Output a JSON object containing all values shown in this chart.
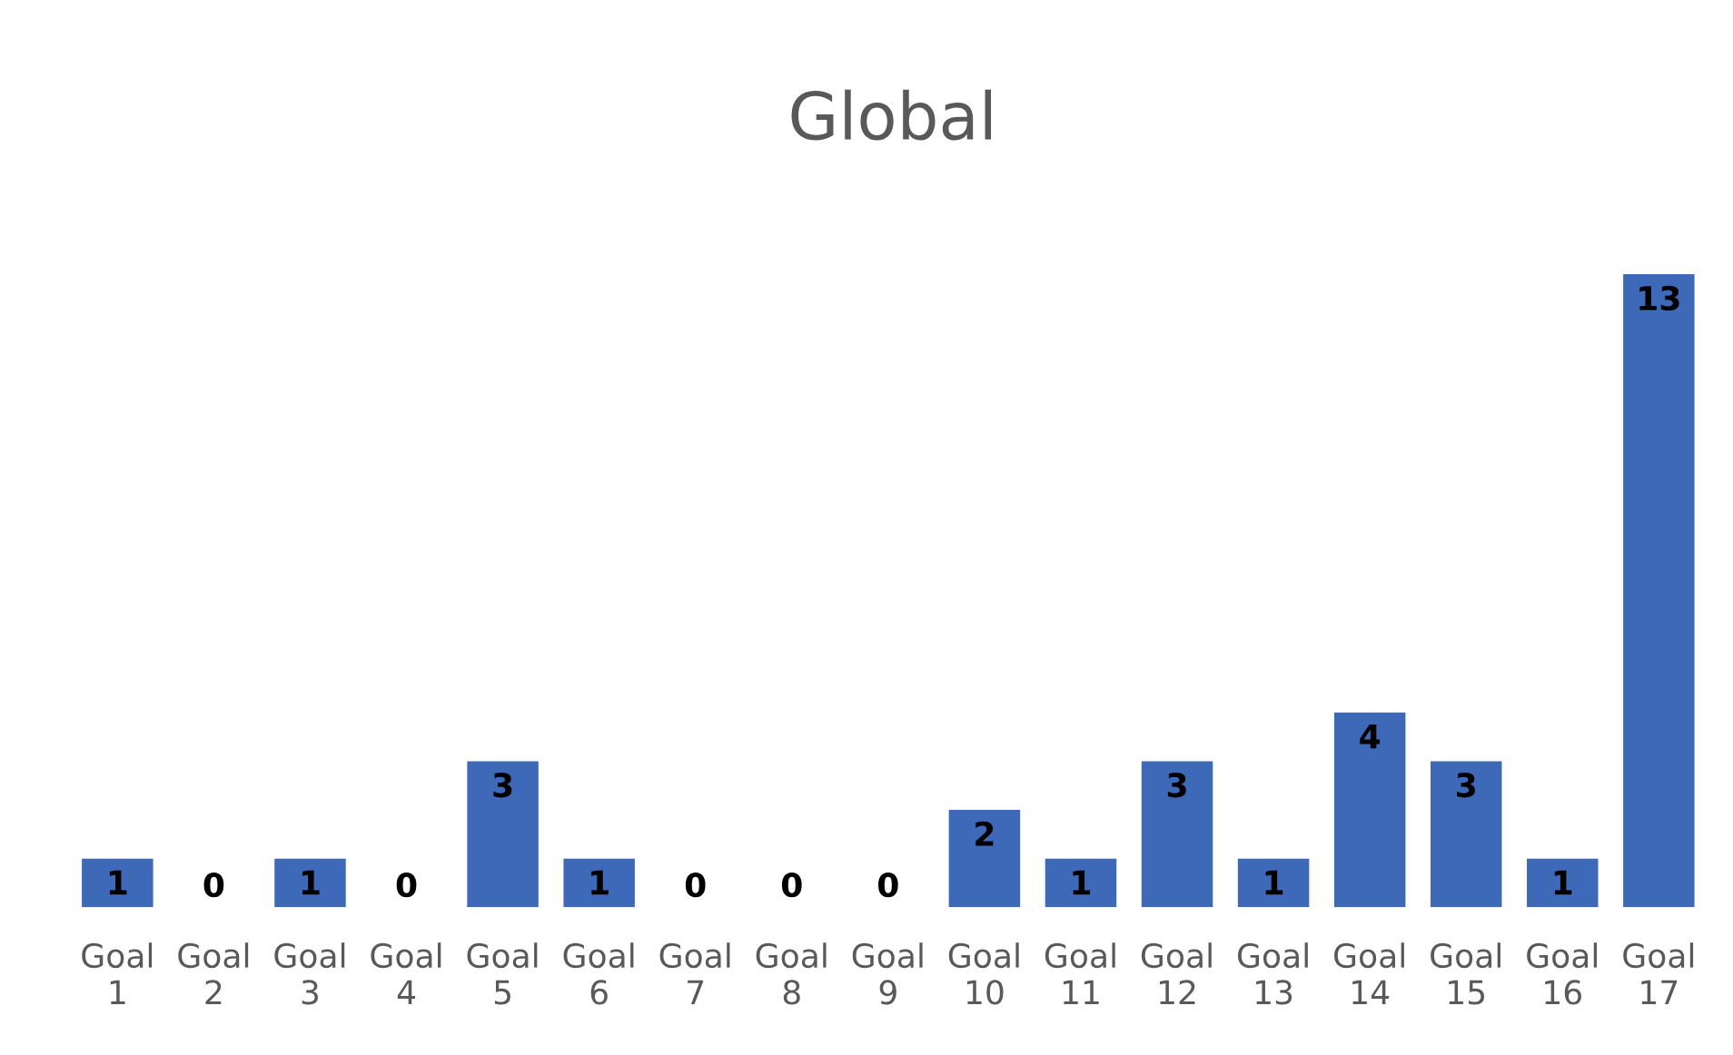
{
  "chart_data": {
    "type": "bar",
    "title": "Global",
    "categories": [
      "Goal 1",
      "Goal 2",
      "Goal 3",
      "Goal 4",
      "Goal 5",
      "Goal 6",
      "Goal 7",
      "Goal 8",
      "Goal 9",
      "Goal 10",
      "Goal 11",
      "Goal 12",
      "Goal 13",
      "Goal 14",
      "Goal 15",
      "Goal 16",
      "Goal 17"
    ],
    "values": [
      1,
      0,
      1,
      0,
      3,
      1,
      0,
      0,
      0,
      2,
      1,
      3,
      1,
      4,
      3,
      1,
      13
    ],
    "color": "#3d69b8",
    "data_labels": true,
    "grid": false,
    "legend": false
  }
}
